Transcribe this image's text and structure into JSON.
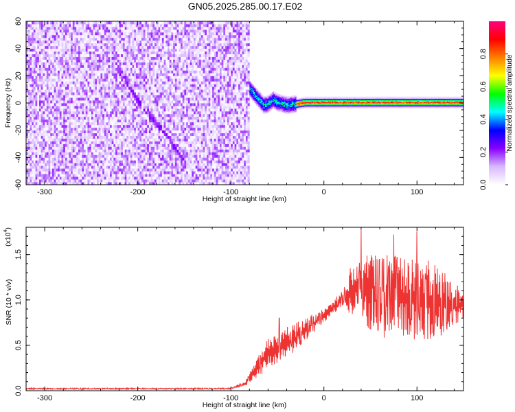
{
  "title": "GN05.2025.285.00.17.E02",
  "chart_data": [
    {
      "type": "heatmap",
      "xlabel": "Height of straight line (km)",
      "ylabel": "Frequency (Hz)",
      "xlim": [
        -320,
        150
      ],
      "ylim": [
        -60,
        60
      ],
      "x_ticks": [
        -300,
        -200,
        -100,
        0,
        100
      ],
      "y_ticks": [
        -60,
        -40,
        -20,
        0,
        20,
        40,
        60
      ],
      "colorbar": {
        "label": "Normalized spectral amplitude",
        "range": [
          0,
          1
        ],
        "ticks": [
          "0.0",
          "0.2",
          "0.4",
          "0.6",
          "0.8"
        ],
        "colormap": [
          "#ffffff",
          "#d8b8ff",
          "#8800ff",
          "#0000ff",
          "#00ffff",
          "#00ff00",
          "#ffff00",
          "#ff7f00",
          "#ff0000",
          "#ff0080"
        ]
      },
      "noise_region": {
        "x_range": [
          -320,
          -80
        ],
        "amplitude_range": [
          0.02,
          0.2
        ]
      },
      "diagonal_trace": [
        [
          -225,
          28
        ],
        [
          -200,
          0
        ],
        [
          -170,
          -25
        ],
        [
          -150,
          -45
        ]
      ],
      "signal_trace": [
        [
          -80,
          10
        ],
        [
          -75,
          6
        ],
        [
          -70,
          2
        ],
        [
          -65,
          -2
        ],
        [
          -60,
          -1
        ],
        [
          -55,
          2
        ],
        [
          -50,
          0
        ],
        [
          -45,
          -1
        ],
        [
          -40,
          -2
        ],
        [
          -30,
          -1
        ],
        [
          -20,
          0
        ],
        [
          0,
          0
        ],
        [
          50,
          0
        ],
        [
          100,
          0
        ],
        [
          150,
          0
        ]
      ],
      "signal_peak_amplitude": 0.92
    },
    {
      "type": "line",
      "xlabel": "Height of straight line (km)",
      "ylabel": "SNR (10 * v/v)",
      "yscale_label": "(x10",
      "yscale_exp": "4",
      "yscale_close": ")",
      "xlim": [
        -320,
        150
      ],
      "ylim": [
        0,
        1.8
      ],
      "x_ticks": [
        -300,
        -200,
        -100,
        0,
        100
      ],
      "y_ticks": [
        "0.0",
        "0.5",
        "1.0",
        "1.5"
      ],
      "series": [
        {
          "color": "#ee3333",
          "envelope": [
            [
              -320,
              0.015,
              0.03
            ],
            [
              -200,
              0.015,
              0.03
            ],
            [
              -100,
              0.015,
              0.03
            ],
            [
              -85,
              0.05,
              0.1
            ],
            [
              -70,
              0.15,
              0.4
            ],
            [
              -60,
              0.25,
              0.6
            ],
            [
              -50,
              0.3,
              0.6
            ],
            [
              -40,
              0.35,
              0.7
            ],
            [
              -30,
              0.45,
              0.75
            ],
            [
              -20,
              0.55,
              0.8
            ],
            [
              -10,
              0.65,
              0.85
            ],
            [
              0,
              0.75,
              0.9
            ],
            [
              10,
              0.85,
              1.0
            ],
            [
              20,
              0.9,
              1.1
            ],
            [
              30,
              0.8,
              1.4
            ],
            [
              40,
              0.8,
              1.5
            ],
            [
              50,
              0.65,
              1.55
            ],
            [
              60,
              0.5,
              1.45
            ],
            [
              70,
              0.65,
              1.55
            ],
            [
              80,
              0.55,
              1.5
            ],
            [
              90,
              0.6,
              1.45
            ],
            [
              100,
              0.55,
              1.5
            ],
            [
              110,
              0.55,
              1.45
            ],
            [
              120,
              0.6,
              1.4
            ],
            [
              130,
              0.6,
              1.3
            ],
            [
              140,
              0.7,
              1.2
            ],
            [
              150,
              0.75,
              1.15
            ]
          ],
          "peaks": [
            [
              -48,
              0.8
            ],
            [
              40,
              1.78
            ],
            [
              75,
              1.72
            ],
            [
              100,
              1.75
            ]
          ]
        }
      ]
    }
  ]
}
